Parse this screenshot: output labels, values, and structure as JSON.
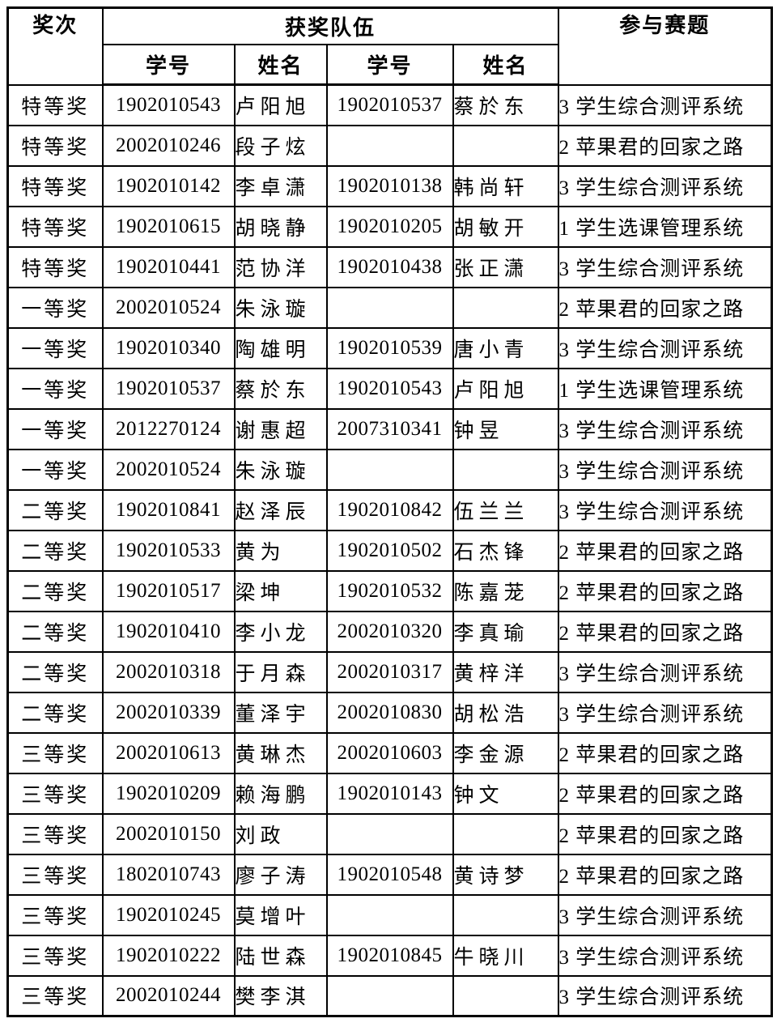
{
  "colors": {
    "border": "#000000",
    "text": "#000000",
    "background": "#ffffff"
  },
  "table": {
    "header": {
      "award": "奖次",
      "team": "获奖队伍",
      "student_id": "学号",
      "name": "姓名",
      "student_id2": "学号",
      "name2": "姓名",
      "topic": "参与赛题"
    },
    "rows": [
      {
        "award": "特等奖",
        "id1": "1902010543",
        "name1": "卢阳旭",
        "id2": "1902010537",
        "name2": "蔡於东",
        "topic": "3 学生综合测评系统"
      },
      {
        "award": "特等奖",
        "id1": "2002010246",
        "name1": "段子炫",
        "id2": "",
        "name2": "",
        "topic": "2 苹果君的回家之路"
      },
      {
        "award": "特等奖",
        "id1": "1902010142",
        "name1": "李卓潇",
        "id2": "1902010138",
        "name2": "韩尚轩",
        "topic": "3 学生综合测评系统"
      },
      {
        "award": "特等奖",
        "id1": "1902010615",
        "name1": "胡晓静",
        "id2": "1902010205",
        "name2": "胡敏开",
        "topic": "1 学生选课管理系统"
      },
      {
        "award": "特等奖",
        "id1": "1902010441",
        "name1": "范协洋",
        "id2": "1902010438",
        "name2": "张正潇",
        "topic": "3 学生综合测评系统"
      },
      {
        "award": "一等奖",
        "id1": "2002010524",
        "name1": "朱泳璇",
        "id2": "",
        "name2": "",
        "topic": "2 苹果君的回家之路"
      },
      {
        "award": "一等奖",
        "id1": "1902010340",
        "name1": "陶雄明",
        "id2": "1902010539",
        "name2": "唐小青",
        "topic": "3 学生综合测评系统"
      },
      {
        "award": "一等奖",
        "id1": "1902010537",
        "name1": "蔡於东",
        "id2": "1902010543",
        "name2": "卢阳旭",
        "topic": "1 学生选课管理系统"
      },
      {
        "award": "一等奖",
        "id1": "2012270124",
        "name1": "谢惠超",
        "id2": "2007310341",
        "name2": "钟昱",
        "topic": "3 学生综合测评系统"
      },
      {
        "award": "一等奖",
        "id1": "2002010524",
        "name1": "朱泳璇",
        "id2": "",
        "name2": "",
        "topic": "3 学生综合测评系统"
      },
      {
        "award": "二等奖",
        "id1": "1902010841",
        "name1": "赵泽辰",
        "id2": "1902010842",
        "name2": "伍兰兰",
        "topic": "3 学生综合测评系统"
      },
      {
        "award": "二等奖",
        "id1": "1902010533",
        "name1": "黄为",
        "id2": "1902010502",
        "name2": "石杰锋",
        "topic": "2 苹果君的回家之路"
      },
      {
        "award": "二等奖",
        "id1": "1902010517",
        "name1": "梁坤",
        "id2": "1902010532",
        "name2": "陈嘉茏",
        "topic": "2 苹果君的回家之路"
      },
      {
        "award": "二等奖",
        "id1": "1902010410",
        "name1": "李小龙",
        "id2": "2002010320",
        "name2": "李真瑜",
        "topic": "2 苹果君的回家之路"
      },
      {
        "award": "二等奖",
        "id1": "2002010318",
        "name1": "于月森",
        "id2": "2002010317",
        "name2": "黄梓洋",
        "topic": "3 学生综合测评系统"
      },
      {
        "award": "二等奖",
        "id1": "2002010339",
        "name1": "董泽宇",
        "id2": "2002010830",
        "name2": "胡松浩",
        "topic": "3 学生综合测评系统"
      },
      {
        "award": "三等奖",
        "id1": "2002010613",
        "name1": "黄琳杰",
        "id2": "2002010603",
        "name2": "李金源",
        "topic": "2 苹果君的回家之路"
      },
      {
        "award": "三等奖",
        "id1": "1902010209",
        "name1": "赖海鹏",
        "id2": "1902010143",
        "name2": "钟文",
        "topic": "2 苹果君的回家之路"
      },
      {
        "award": "三等奖",
        "id1": "2002010150",
        "name1": "刘政",
        "id2": "",
        "name2": "",
        "topic": "2 苹果君的回家之路"
      },
      {
        "award": "三等奖",
        "id1": "1802010743",
        "name1": "廖子涛",
        "id2": "1902010548",
        "name2": "黄诗梦",
        "topic": "2 苹果君的回家之路"
      },
      {
        "award": "三等奖",
        "id1": "1902010245",
        "name1": "莫增叶",
        "id2": "",
        "name2": "",
        "topic": "3 学生综合测评系统"
      },
      {
        "award": "三等奖",
        "id1": "1902010222",
        "name1": "陆世森",
        "id2": "1902010845",
        "name2": "牛晓川",
        "topic": "3 学生综合测评系统"
      },
      {
        "award": "三等奖",
        "id1": "2002010244",
        "name1": "樊李淇",
        "id2": "",
        "name2": "",
        "topic": "3 学生综合测评系统"
      }
    ]
  }
}
